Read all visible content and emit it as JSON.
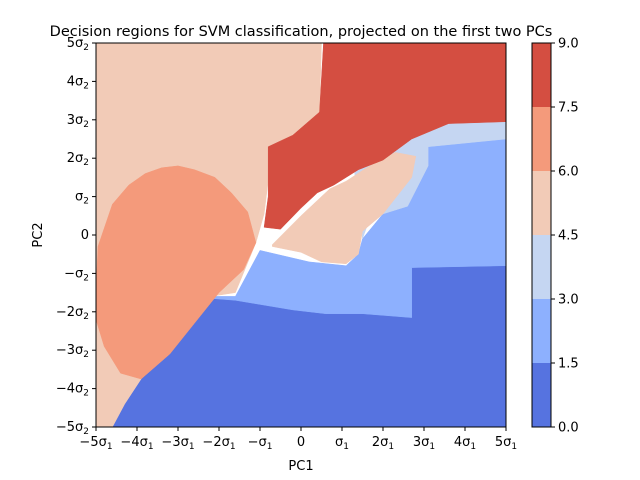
{
  "chart_data": {
    "type": "heatmap",
    "title": "Decision regions for SVM classification, projected on the first two PCs",
    "xlabel": "PC1",
    "ylabel": "PC2",
    "xlim": [
      -5,
      5
    ],
    "ylim": [
      -5,
      5
    ],
    "x_ticks": [
      {
        "value": -5,
        "base": "−5σ",
        "sub": "1"
      },
      {
        "value": -4,
        "base": "−4σ",
        "sub": "1"
      },
      {
        "value": -3,
        "base": "−3σ",
        "sub": "1"
      },
      {
        "value": -2,
        "base": "−2σ",
        "sub": "1"
      },
      {
        "value": -1,
        "base": "−σ",
        "sub": "1"
      },
      {
        "value": 0,
        "base": "0",
        "sub": ""
      },
      {
        "value": 1,
        "base": "σ",
        "sub": "1"
      },
      {
        "value": 2,
        "base": "2σ",
        "sub": "1"
      },
      {
        "value": 3,
        "base": "3σ",
        "sub": "1"
      },
      {
        "value": 4,
        "base": "4σ",
        "sub": "1"
      },
      {
        "value": 5,
        "base": "5σ",
        "sub": "1"
      }
    ],
    "y_ticks": [
      {
        "value": 5,
        "base": "5σ",
        "sub": "2"
      },
      {
        "value": 4,
        "base": "4σ",
        "sub": "2"
      },
      {
        "value": 3,
        "base": "3σ",
        "sub": "2"
      },
      {
        "value": 2,
        "base": "2σ",
        "sub": "2"
      },
      {
        "value": 1,
        "base": "σ",
        "sub": "2"
      },
      {
        "value": 0,
        "base": "0",
        "sub": ""
      },
      {
        "value": -1,
        "base": "−σ",
        "sub": "2"
      },
      {
        "value": -2,
        "base": "−2σ",
        "sub": "2"
      },
      {
        "value": -3,
        "base": "−3σ",
        "sub": "2"
      },
      {
        "value": -4,
        "base": "−4σ",
        "sub": "2"
      },
      {
        "value": -5,
        "base": "−5σ",
        "sub": "2"
      }
    ],
    "colorbar": {
      "levels": [
        0.0,
        1.5,
        3.0,
        4.5,
        6.0,
        7.5,
        9.0
      ],
      "tick_labels": [
        "0.0",
        "1.5",
        "3.0",
        "4.5",
        "6.0",
        "7.5",
        "9.0"
      ],
      "colors": [
        "#5673e0",
        "#8db0fe",
        "#c5d6f2",
        "#f2cbb7",
        "#f49a7b",
        "#d44e41"
      ]
    },
    "regions": [
      {
        "level": 0,
        "color": "#5673e0",
        "points": [
          [
            -5,
            -5
          ],
          [
            5,
            -5
          ],
          [
            5,
            -0.8
          ],
          [
            2.7,
            -0.85
          ],
          [
            2.7,
            -2.15
          ],
          [
            1.5,
            -2.05
          ],
          [
            0.6,
            -2.05
          ],
          [
            -0.2,
            -1.95
          ],
          [
            -1.6,
            -1.7
          ],
          [
            -2.2,
            -1.65
          ],
          [
            -3.1,
            -2.8
          ],
          [
            -3.8,
            -3.6
          ],
          [
            -4.3,
            -4.4
          ],
          [
            -4.6,
            -5
          ]
        ]
      },
      {
        "level": 1,
        "color": "#8db0fe",
        "points": [
          [
            -2.2,
            -1.6
          ],
          [
            -1.6,
            -1.6
          ],
          [
            -1.0,
            -0.4
          ],
          [
            0.2,
            -0.7
          ],
          [
            1.1,
            -0.8
          ],
          [
            1.4,
            -0.5
          ],
          [
            1.5,
            -0.1
          ],
          [
            2.0,
            0.55
          ],
          [
            2.6,
            0.75
          ],
          [
            3.1,
            1.8
          ],
          [
            3.1,
            2.3
          ],
          [
            5,
            2.5
          ],
          [
            5,
            -0.8
          ],
          [
            2.7,
            -0.85
          ],
          [
            2.7,
            -2.15
          ],
          [
            1.5,
            -2.05
          ],
          [
            0.6,
            -2.05
          ],
          [
            -0.2,
            -1.95
          ],
          [
            -1.6,
            -1.7
          ],
          [
            -2.2,
            -1.65
          ]
        ]
      },
      {
        "level": 2,
        "color": "#c5d6f2",
        "points": [
          [
            1.5,
            -0.1
          ],
          [
            1.6,
            0.2
          ],
          [
            2.0,
            0.55
          ],
          [
            2.6,
            0.75
          ],
          [
            3.1,
            1.8
          ],
          [
            3.1,
            2.3
          ],
          [
            5,
            2.5
          ],
          [
            5,
            2.95
          ],
          [
            3.6,
            2.9
          ],
          [
            2.7,
            2.5
          ],
          [
            2.0,
            1.95
          ],
          [
            1.3,
            1.7
          ]
        ]
      },
      {
        "level": 3,
        "color": "#f2cbb7",
        "points": [
          [
            -5,
            5
          ],
          [
            0.5,
            5
          ],
          [
            0.45,
            3.2
          ],
          [
            -0.2,
            2.6
          ],
          [
            -0.8,
            2.3
          ],
          [
            -0.8,
            1.4
          ],
          [
            -0.9,
            0.55
          ],
          [
            -1.1,
            -0.2
          ],
          [
            -1.6,
            -1.5
          ],
          [
            -2.2,
            -1.6
          ],
          [
            -3.1,
            -2.8
          ],
          [
            -3.9,
            -3.75
          ],
          [
            -4.3,
            -4.4
          ],
          [
            -4.6,
            -5
          ],
          [
            -5,
            -5
          ]
        ]
      },
      {
        "level": 3,
        "color": "#f2cbb7",
        "points": [
          [
            -0.7,
            -0.25
          ],
          [
            0,
            0.5
          ],
          [
            0.7,
            1.2
          ],
          [
            1.1,
            1.4
          ],
          [
            1.6,
            1.75
          ],
          [
            2.3,
            2.15
          ],
          [
            2.8,
            2.05
          ],
          [
            2.7,
            1.5
          ],
          [
            2.0,
            0.55
          ],
          [
            1.5,
            0.1
          ],
          [
            1.4,
            -0.5
          ],
          [
            1.1,
            -0.75
          ],
          [
            0.5,
            -0.7
          ],
          [
            0,
            -0.45
          ],
          [
            -0.7,
            -0.3
          ]
        ]
      },
      {
        "level": 4,
        "color": "#f49a7b",
        "points": [
          [
            -5,
            -1.5
          ],
          [
            -4.95,
            -0.3
          ],
          [
            -4.6,
            0.8
          ],
          [
            -4.2,
            1.3
          ],
          [
            -3.8,
            1.6
          ],
          [
            -3.4,
            1.75
          ],
          [
            -3.0,
            1.8
          ],
          [
            -2.6,
            1.7
          ],
          [
            -2.1,
            1.5
          ],
          [
            -1.7,
            1.1
          ],
          [
            -1.3,
            0.6
          ],
          [
            -1.1,
            -0.2
          ],
          [
            -1.4,
            -0.9
          ],
          [
            -2.0,
            -1.5
          ],
          [
            -2.6,
            -2.3
          ],
          [
            -3.2,
            -3.1
          ],
          [
            -3.9,
            -3.75
          ],
          [
            -4.4,
            -3.6
          ],
          [
            -4.8,
            -2.9
          ],
          [
            -5,
            -2.2
          ]
        ]
      },
      {
        "level": 5,
        "color": "#d44e41",
        "points": [
          [
            0.55,
            5
          ],
          [
            5,
            5
          ],
          [
            5,
            2.95
          ],
          [
            3.6,
            2.9
          ],
          [
            2.7,
            2.5
          ],
          [
            2.0,
            1.95
          ],
          [
            1.4,
            1.7
          ],
          [
            0.8,
            1.3
          ],
          [
            0.4,
            1.1
          ],
          [
            0,
            0.7
          ],
          [
            -0.5,
            0.15
          ],
          [
            -0.9,
            0.2
          ],
          [
            -0.8,
            1.0
          ],
          [
            -0.8,
            2.3
          ],
          [
            -0.2,
            2.6
          ],
          [
            0.45,
            3.2
          ]
        ]
      }
    ]
  }
}
